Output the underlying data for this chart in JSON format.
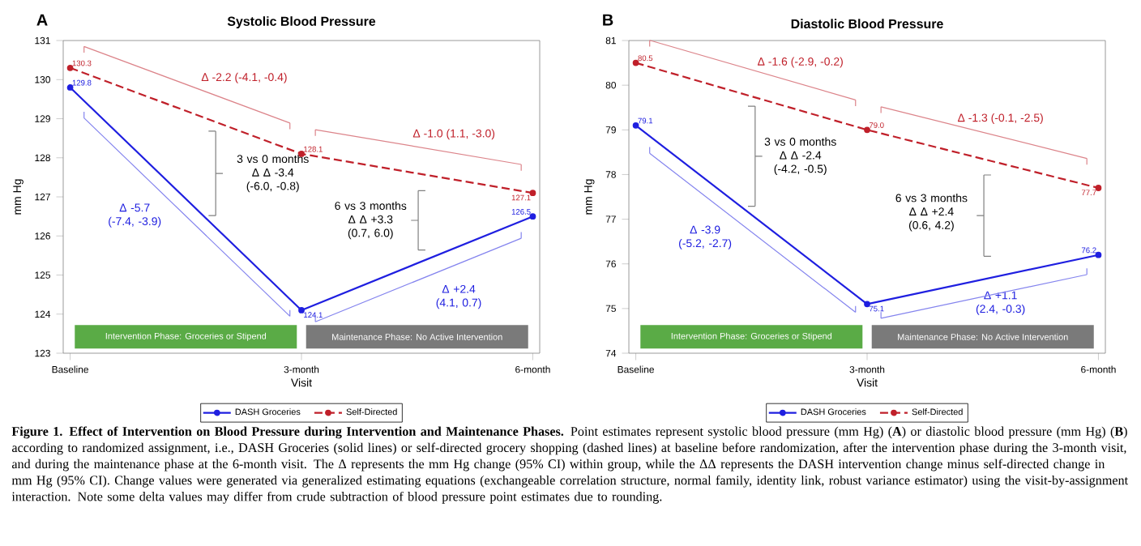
{
  "chart_data": [
    {
      "type": "line",
      "title": "Systolic Blood Pressure",
      "xlabel": "Visit",
      "ylabel": "mm Hg",
      "categories": [
        "Baseline",
        "3-month",
        "6-month"
      ],
      "series": [
        {
          "name": "DASH Groceries",
          "color": "#1f1fe0",
          "line_style": "solid",
          "values": [
            129.8,
            124.1,
            126.5
          ],
          "value_labels": [
            "129.8",
            "124.1",
            "126.5"
          ]
        },
        {
          "name": "Self-Directed",
          "color": "#c0202a",
          "line_style": "dashed",
          "values": [
            130.3,
            128.1,
            127.1
          ],
          "value_labels": [
            "130.3",
            "128.1",
            "127.1"
          ]
        }
      ],
      "ylim": [
        123,
        131
      ],
      "yticks": [
        123,
        124,
        125,
        126,
        127,
        128,
        129,
        130,
        131
      ],
      "marker": "circle",
      "legend": "bottom",
      "bands": [
        {
          "axis": "x",
          "from": "Baseline",
          "to": "3-month",
          "label": "Intervention Phase: Groceries or Stipend",
          "color": "#5aab46"
        },
        {
          "axis": "x",
          "from": "3-month",
          "to": "6-month",
          "label": "Maintenance Phase: No Active Intervention",
          "color": "#7a7a7a"
        }
      ],
      "annotations": [
        "A",
        "Δ -2.2 (-4.1, -0.4)",
        "Δ -1.0 (1.1, -3.0)",
        "3 vs 0 months Δ Δ -3.4 (-6.0, -0.8)",
        "6 vs 3 months Δ Δ +3.3 (0.7, 6.0)",
        "Δ -5.7 (-7.4, -3.9)",
        "Δ +2.4 (4.1, 0.7)",
        "**Figure 1. Effect of Intervention on Blood Pressure during Intervention and Maintenance Phases.** Point estimates represent systolic blood pressure (mm Hg) (**A**) or diastolic blood pressure (mm Hg) (**B**) according to randomized assignment, i.e., DASH Groceries (solid lines) or self-directed grocery shopping (dashed lines) at baseline before randomization, after the intervention phase during the 3-month visit, and during the maintenance phase at the 6-month visit. The Δ represents the mm Hg change (95% CI) within group, while the ΔΔ represents the DASH intervention change minus self-directed change in mm Hg (95% CI). Change values were generated via generalized estimating equations (exchangeable correlation structure, normal family, identity link, robust variance estimator) using the visit-by-assignment interaction. Note some delta values may differ from crude subtraction of blood pressure point estimates due to rounding."
      ]
    },
    {
      "type": "line",
      "title": "Diastolic Blood Pressure",
      "xlabel": "Visit",
      "ylabel": "mm Hg",
      "categories": [
        "Baseline",
        "3-month",
        "6-month"
      ],
      "series": [
        {
          "name": "DASH Groceries",
          "color": "#1f1fe0",
          "line_style": "solid",
          "values": [
            79.1,
            75.1,
            76.2
          ],
          "value_labels": [
            "79.1",
            "75.1",
            "76.2"
          ]
        },
        {
          "name": "Self-Directed",
          "color": "#c0202a",
          "line_style": "dashed",
          "values": [
            80.5,
            79.0,
            77.7
          ],
          "value_labels": [
            "80.5",
            "79.0",
            "77.7"
          ]
        }
      ],
      "ylim": [
        74,
        81
      ],
      "yticks": [
        74,
        75,
        76,
        77,
        78,
        79,
        80,
        81
      ],
      "marker": "circle",
      "legend": "bottom",
      "bands": [
        {
          "axis": "x",
          "from": "Baseline",
          "to": "3-month",
          "label": "Intervention Phase: Groceries or Stipend",
          "color": "#5aab46"
        },
        {
          "axis": "x",
          "from": "3-month",
          "to": "6-month",
          "label": "Maintenance Phase: No Active Intervention",
          "color": "#7a7a7a"
        }
      ],
      "annotations": [
        "B",
        "Δ -1.6 (-2.9, -0.2)",
        "Δ -1.3 (-0.1, -2.5)",
        "3 vs 0 months Δ Δ -2.4 (-4.2, -0.5)",
        "6 vs 3 months Δ Δ +2.4 (0.6, 4.2)",
        "Δ -3.9 (-5.2, -2.7)",
        "Δ +1.1 (2.4, -0.3)"
      ]
    }
  ]
}
